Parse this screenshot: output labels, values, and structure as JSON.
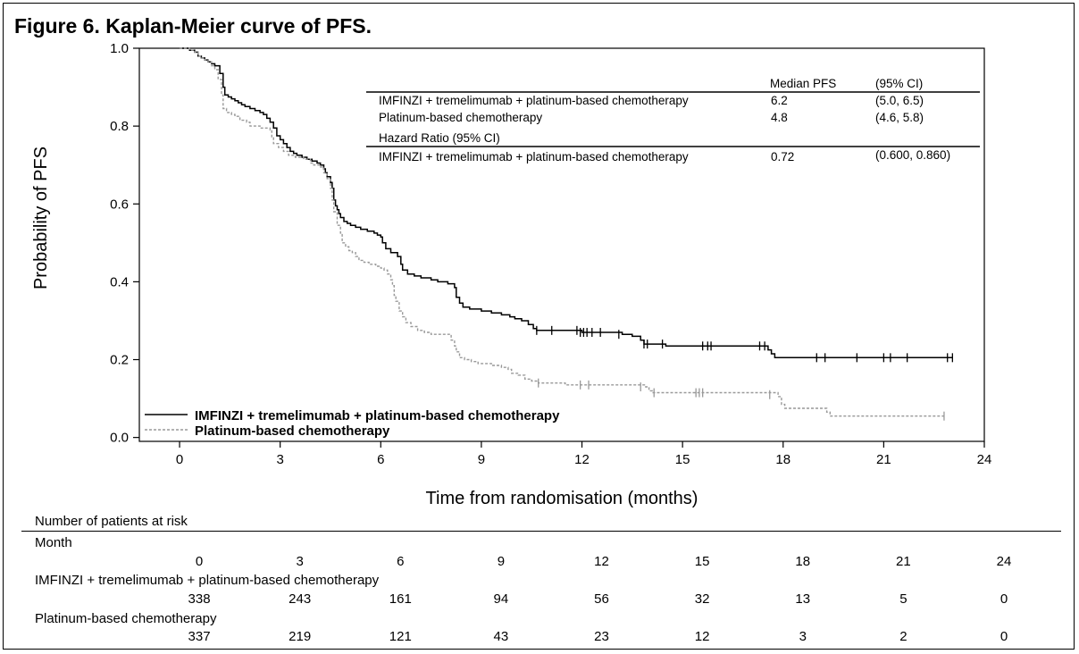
{
  "figure_title": "Figure 6. Kaplan-Meier curve of PFS.",
  "chart_data": {
    "type": "line",
    "subtype": "kaplan-meier",
    "xlabel": "Time from randomisation (months)",
    "ylabel": "Probability of PFS",
    "xlim": [
      -1.2,
      24
    ],
    "ylim": [
      -0.01,
      1.0
    ],
    "xticks": [
      0,
      3,
      6,
      9,
      12,
      15,
      18,
      21,
      24
    ],
    "yticks": [
      0.0,
      0.2,
      0.4,
      0.6,
      0.8,
      1.0
    ],
    "ytick_labels": [
      "0.0",
      "0.2",
      "0.4",
      "0.6",
      "0.8",
      "1.0"
    ],
    "legend_position": "bottom-left",
    "series": [
      {
        "name": "IMFINZI + tremelimumab + platinum-based chemotherapy",
        "color": "#000000",
        "dash": "solid",
        "steps": [
          [
            0,
            1.0
          ],
          [
            0.3,
            0.995
          ],
          [
            0.45,
            0.99
          ],
          [
            0.55,
            0.98
          ],
          [
            0.65,
            0.975
          ],
          [
            0.75,
            0.97
          ],
          [
            0.85,
            0.965
          ],
          [
            0.95,
            0.96
          ],
          [
            1.05,
            0.955
          ],
          [
            1.2,
            0.935
          ],
          [
            1.3,
            0.9
          ],
          [
            1.35,
            0.88
          ],
          [
            1.45,
            0.875
          ],
          [
            1.55,
            0.87
          ],
          [
            1.65,
            0.865
          ],
          [
            1.75,
            0.86
          ],
          [
            1.85,
            0.855
          ],
          [
            1.95,
            0.85
          ],
          [
            2.1,
            0.845
          ],
          [
            2.25,
            0.84
          ],
          [
            2.4,
            0.835
          ],
          [
            2.5,
            0.83
          ],
          [
            2.6,
            0.82
          ],
          [
            2.7,
            0.81
          ],
          [
            2.8,
            0.795
          ],
          [
            2.9,
            0.775
          ],
          [
            3.0,
            0.765
          ],
          [
            3.1,
            0.755
          ],
          [
            3.2,
            0.745
          ],
          [
            3.3,
            0.735
          ],
          [
            3.4,
            0.73
          ],
          [
            3.5,
            0.725
          ],
          [
            3.65,
            0.72
          ],
          [
            3.8,
            0.715
          ],
          [
            3.95,
            0.71
          ],
          [
            4.1,
            0.705
          ],
          [
            4.2,
            0.7
          ],
          [
            4.3,
            0.69
          ],
          [
            4.35,
            0.68
          ],
          [
            4.4,
            0.67
          ],
          [
            4.5,
            0.655
          ],
          [
            4.55,
            0.64
          ],
          [
            4.6,
            0.61
          ],
          [
            4.65,
            0.595
          ],
          [
            4.7,
            0.585
          ],
          [
            4.75,
            0.575
          ],
          [
            4.8,
            0.565
          ],
          [
            4.9,
            0.555
          ],
          [
            5.0,
            0.55
          ],
          [
            5.1,
            0.545
          ],
          [
            5.25,
            0.54
          ],
          [
            5.4,
            0.535
          ],
          [
            5.6,
            0.53
          ],
          [
            5.8,
            0.525
          ],
          [
            5.9,
            0.52
          ],
          [
            6.0,
            0.515
          ],
          [
            6.05,
            0.5
          ],
          [
            6.15,
            0.485
          ],
          [
            6.3,
            0.475
          ],
          [
            6.5,
            0.465
          ],
          [
            6.6,
            0.445
          ],
          [
            6.65,
            0.43
          ],
          [
            6.8,
            0.42
          ],
          [
            7.0,
            0.415
          ],
          [
            7.2,
            0.41
          ],
          [
            7.5,
            0.405
          ],
          [
            7.7,
            0.4
          ],
          [
            8.0,
            0.395
          ],
          [
            8.2,
            0.385
          ],
          [
            8.25,
            0.36
          ],
          [
            8.35,
            0.345
          ],
          [
            8.45,
            0.335
          ],
          [
            8.65,
            0.33
          ],
          [
            9.0,
            0.325
          ],
          [
            9.3,
            0.32
          ],
          [
            9.6,
            0.315
          ],
          [
            9.85,
            0.31
          ],
          [
            10.0,
            0.305
          ],
          [
            10.2,
            0.3
          ],
          [
            10.4,
            0.29
          ],
          [
            10.55,
            0.28
          ],
          [
            10.65,
            0.275
          ],
          [
            12.0,
            0.27
          ],
          [
            13.2,
            0.265
          ],
          [
            13.5,
            0.26
          ],
          [
            13.75,
            0.25
          ],
          [
            13.85,
            0.24
          ],
          [
            14.2,
            0.24
          ],
          [
            14.5,
            0.235
          ],
          [
            15.0,
            0.235
          ],
          [
            17.4,
            0.235
          ],
          [
            17.55,
            0.225
          ],
          [
            17.65,
            0.215
          ],
          [
            17.75,
            0.205
          ],
          [
            23.05,
            0.205
          ]
        ],
        "censors": [
          [
            10.65,
            0.275
          ],
          [
            11.1,
            0.275
          ],
          [
            11.85,
            0.275
          ],
          [
            11.95,
            0.27
          ],
          [
            12.05,
            0.27
          ],
          [
            12.15,
            0.27
          ],
          [
            12.3,
            0.27
          ],
          [
            12.55,
            0.27
          ],
          [
            13.1,
            0.265
          ],
          [
            13.85,
            0.24
          ],
          [
            13.95,
            0.24
          ],
          [
            14.4,
            0.24
          ],
          [
            15.6,
            0.235
          ],
          [
            15.75,
            0.235
          ],
          [
            15.85,
            0.235
          ],
          [
            17.3,
            0.235
          ],
          [
            17.45,
            0.235
          ],
          [
            19.0,
            0.205
          ],
          [
            19.25,
            0.205
          ],
          [
            20.2,
            0.205
          ],
          [
            21.0,
            0.205
          ],
          [
            21.2,
            0.205
          ],
          [
            21.7,
            0.205
          ],
          [
            22.9,
            0.205
          ],
          [
            23.05,
            0.205
          ]
        ]
      },
      {
        "name": "Platinum-based chemotherapy",
        "color": "#999999",
        "dash": "dashed",
        "steps": [
          [
            0,
            1.0
          ],
          [
            0.3,
            0.995
          ],
          [
            0.45,
            0.99
          ],
          [
            0.55,
            0.98
          ],
          [
            0.65,
            0.975
          ],
          [
            0.75,
            0.97
          ],
          [
            0.85,
            0.965
          ],
          [
            0.95,
            0.955
          ],
          [
            1.05,
            0.945
          ],
          [
            1.15,
            0.92
          ],
          [
            1.25,
            0.88
          ],
          [
            1.3,
            0.845
          ],
          [
            1.4,
            0.835
          ],
          [
            1.55,
            0.83
          ],
          [
            1.65,
            0.825
          ],
          [
            1.8,
            0.815
          ],
          [
            2.0,
            0.81
          ],
          [
            2.1,
            0.8
          ],
          [
            2.4,
            0.795
          ],
          [
            2.7,
            0.79
          ],
          [
            2.75,
            0.77
          ],
          [
            2.8,
            0.755
          ],
          [
            2.95,
            0.745
          ],
          [
            3.1,
            0.735
          ],
          [
            3.25,
            0.725
          ],
          [
            3.45,
            0.72
          ],
          [
            3.7,
            0.715
          ],
          [
            3.9,
            0.705
          ],
          [
            4.0,
            0.7
          ],
          [
            4.2,
            0.695
          ],
          [
            4.3,
            0.68
          ],
          [
            4.4,
            0.665
          ],
          [
            4.5,
            0.64
          ],
          [
            4.55,
            0.61
          ],
          [
            4.6,
            0.58
          ],
          [
            4.7,
            0.545
          ],
          [
            4.8,
            0.525
          ],
          [
            4.85,
            0.5
          ],
          [
            4.95,
            0.49
          ],
          [
            5.05,
            0.48
          ],
          [
            5.15,
            0.475
          ],
          [
            5.25,
            0.465
          ],
          [
            5.35,
            0.455
          ],
          [
            5.5,
            0.45
          ],
          [
            5.65,
            0.445
          ],
          [
            5.85,
            0.44
          ],
          [
            6.0,
            0.435
          ],
          [
            6.1,
            0.43
          ],
          [
            6.2,
            0.42
          ],
          [
            6.3,
            0.405
          ],
          [
            6.35,
            0.39
          ],
          [
            6.4,
            0.365
          ],
          [
            6.45,
            0.35
          ],
          [
            6.55,
            0.325
          ],
          [
            6.65,
            0.31
          ],
          [
            6.75,
            0.295
          ],
          [
            6.9,
            0.285
          ],
          [
            7.1,
            0.275
          ],
          [
            7.3,
            0.27
          ],
          [
            7.5,
            0.265
          ],
          [
            8.1,
            0.25
          ],
          [
            8.2,
            0.235
          ],
          [
            8.25,
            0.22
          ],
          [
            8.35,
            0.205
          ],
          [
            8.5,
            0.2
          ],
          [
            8.7,
            0.195
          ],
          [
            8.9,
            0.19
          ],
          [
            9.3,
            0.185
          ],
          [
            9.6,
            0.18
          ],
          [
            9.8,
            0.175
          ],
          [
            9.9,
            0.165
          ],
          [
            10.1,
            0.16
          ],
          [
            10.3,
            0.15
          ],
          [
            10.5,
            0.145
          ],
          [
            10.7,
            0.14
          ],
          [
            11.5,
            0.135
          ],
          [
            13.9,
            0.13
          ],
          [
            14.0,
            0.12
          ],
          [
            14.1,
            0.115
          ],
          [
            17.85,
            0.105
          ],
          [
            17.95,
            0.085
          ],
          [
            18.05,
            0.075
          ],
          [
            19.3,
            0.065
          ],
          [
            19.4,
            0.055
          ],
          [
            22.8,
            0.055
          ]
        ],
        "censors": [
          [
            10.7,
            0.14
          ],
          [
            11.95,
            0.135
          ],
          [
            12.2,
            0.135
          ],
          [
            13.75,
            0.13
          ],
          [
            14.15,
            0.115
          ],
          [
            15.4,
            0.115
          ],
          [
            15.5,
            0.115
          ],
          [
            15.6,
            0.115
          ],
          [
            17.6,
            0.11
          ],
          [
            22.8,
            0.055
          ]
        ]
      }
    ],
    "table": {
      "header_median": "Median PFS",
      "header_ci": "(95% CI)",
      "rows": [
        {
          "label": "IMFINZI + tremelimumab + platinum-based chemotherapy",
          "median": "6.2",
          "ci": "(5.0, 6.5)"
        },
        {
          "label": "Platinum-based chemotherapy",
          "median": "4.8",
          "ci": "(4.6, 5.8)"
        }
      ],
      "hr_header": "Hazard Ratio (95% CI)",
      "hr_row": {
        "label": "IMFINZI + tremelimumab + platinum-based chemotherapy",
        "value": "0.72",
        "ci": "(0.600, 0.860)"
      }
    }
  },
  "risk_table": {
    "title": "Number of patients at risk",
    "month_label": "Month",
    "months": [
      "0",
      "3",
      "6",
      "9",
      "12",
      "15",
      "18",
      "21",
      "24"
    ],
    "rows": [
      {
        "label": "IMFINZI + tremelimumab + platinum-based chemotherapy",
        "values": [
          "338",
          "243",
          "161",
          "94",
          "56",
          "32",
          "13",
          "5",
          "0"
        ]
      },
      {
        "label": "Platinum-based chemotherapy",
        "values": [
          "337",
          "219",
          "121",
          "43",
          "23",
          "12",
          "3",
          "2",
          "0"
        ]
      }
    ]
  }
}
